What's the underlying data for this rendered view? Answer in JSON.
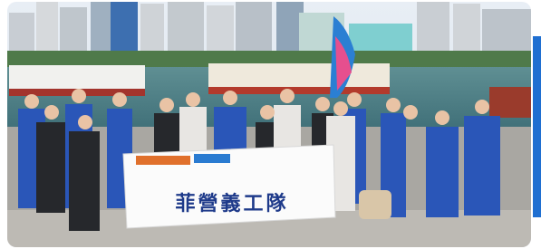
{
  "photo": {
    "banner_text": "菲營義工隊"
  }
}
